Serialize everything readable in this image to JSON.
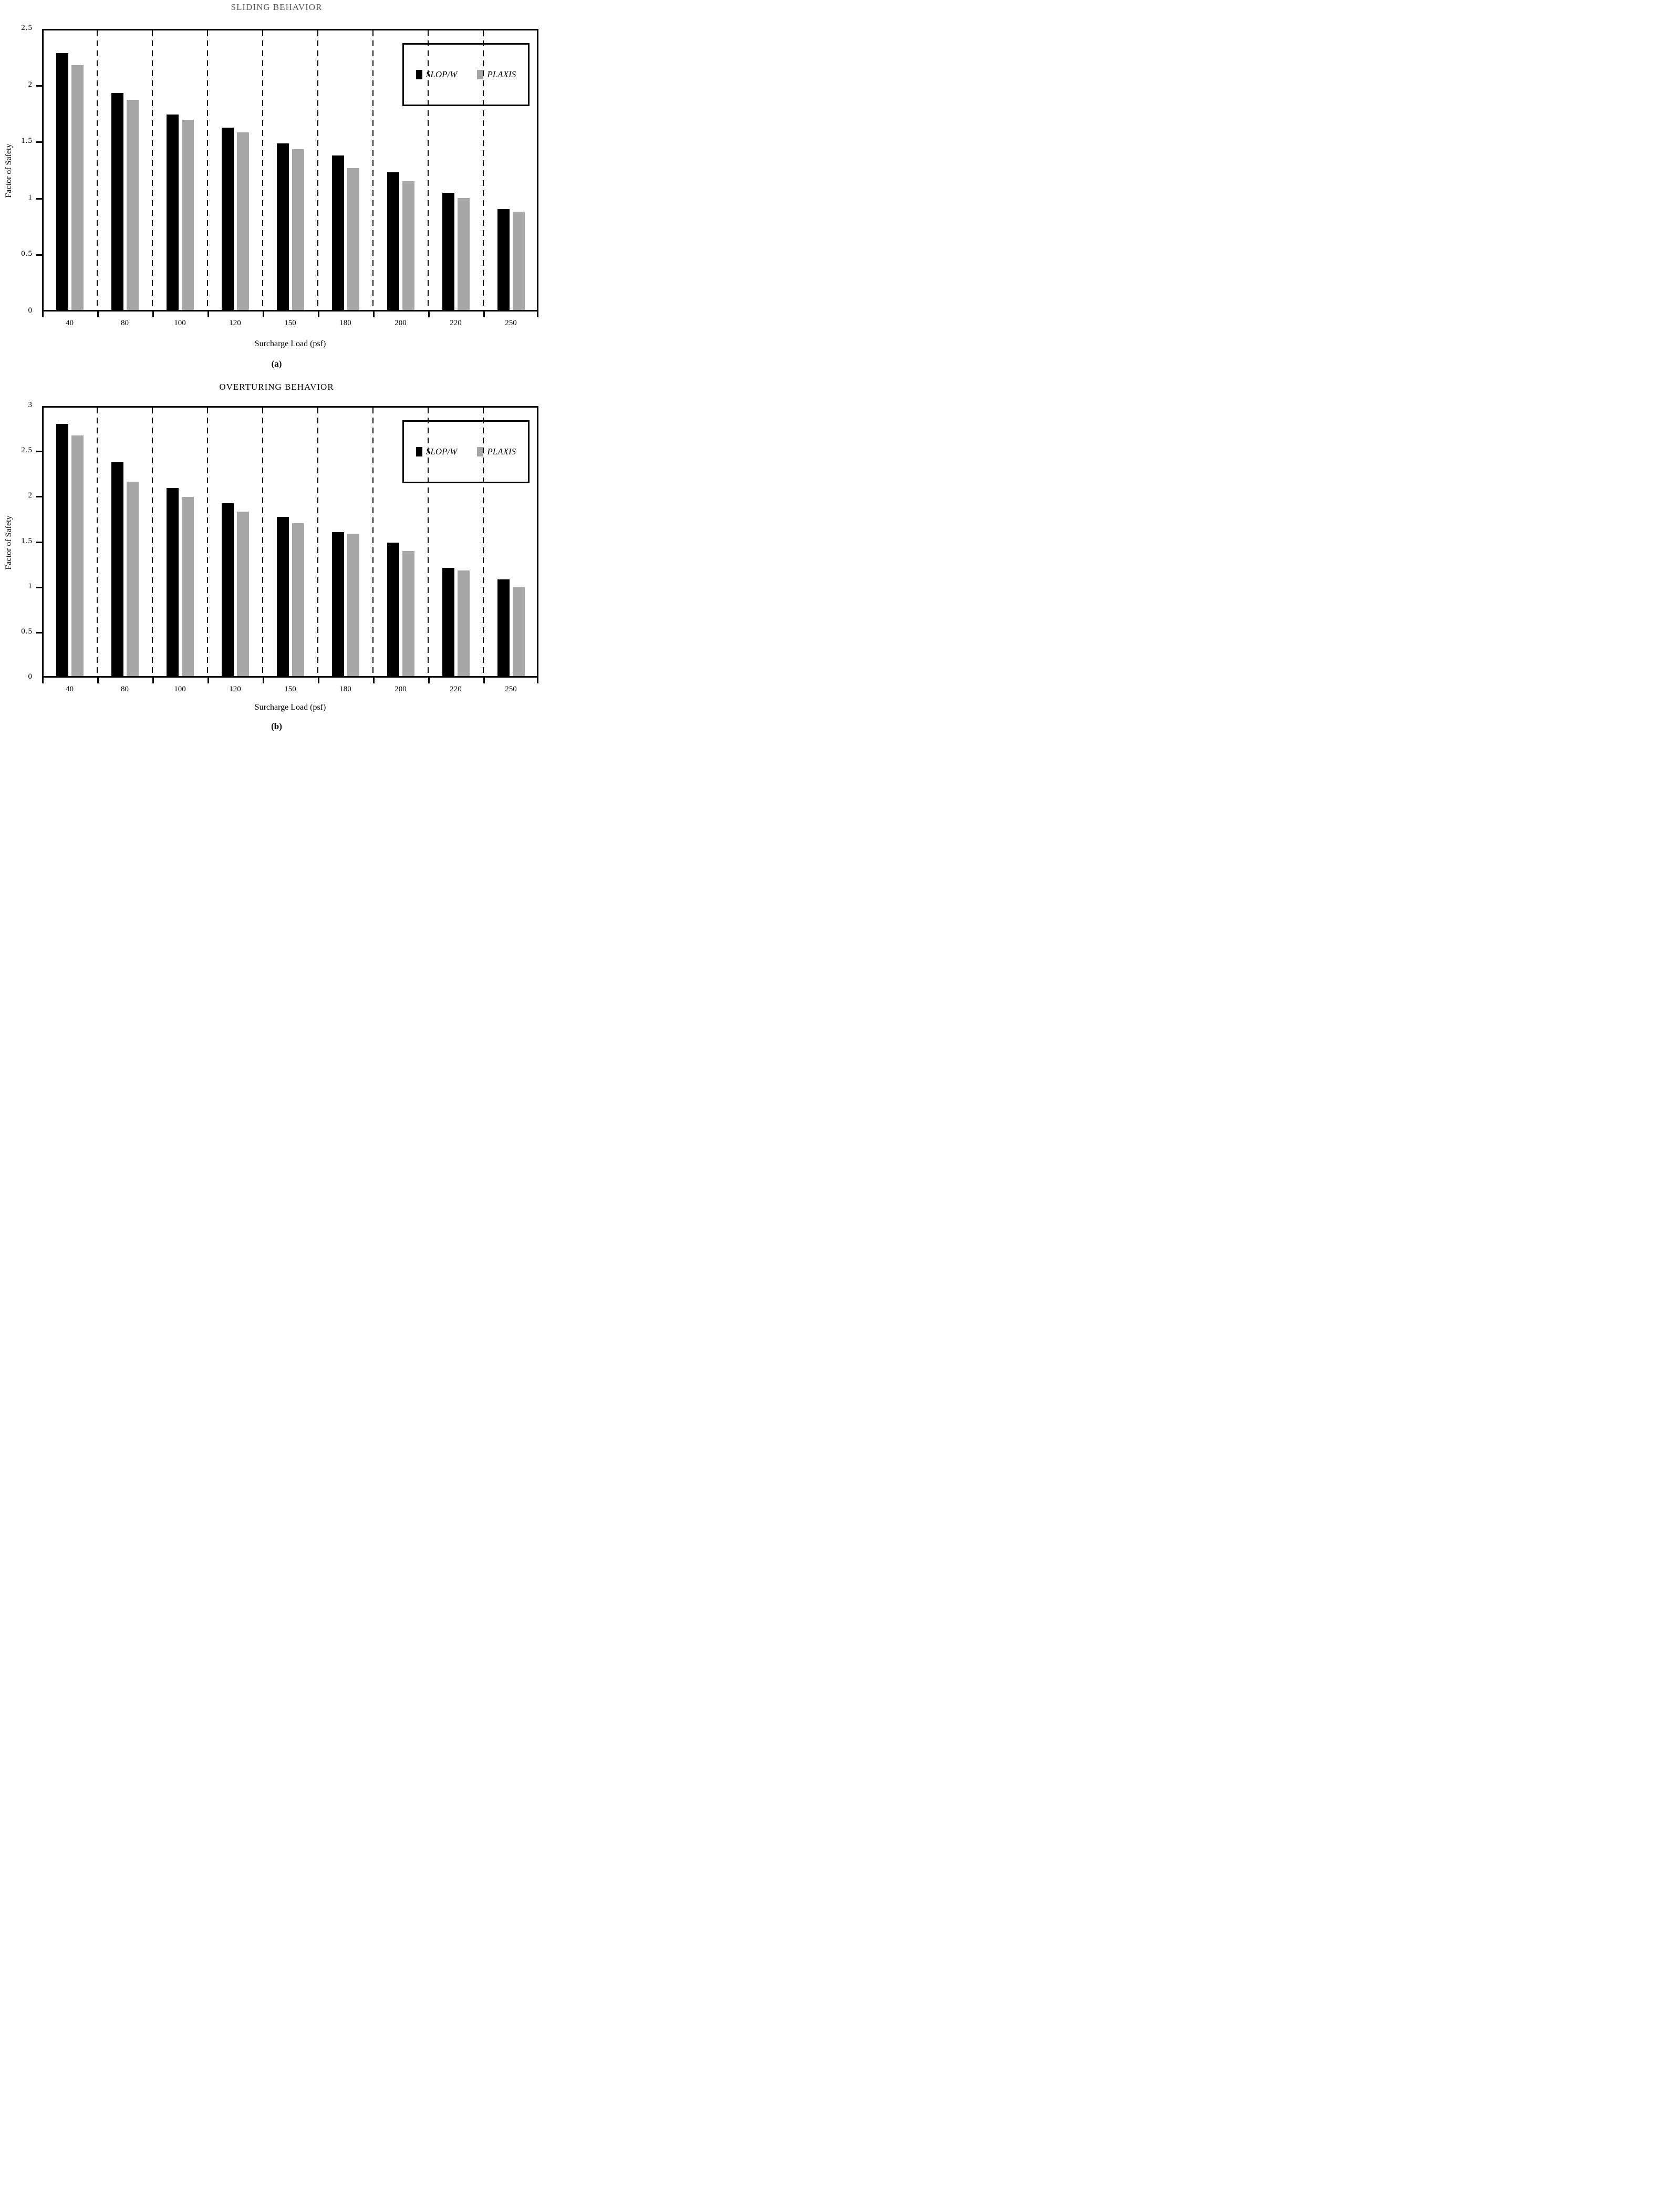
{
  "page": {
    "background": "#ffffff"
  },
  "chart_data": [
    {
      "type": "bar",
      "title": "SLIDING BEHAVIOR",
      "title_color": "#5a5a5a",
      "caption": "(a)",
      "xlabel": "Surcharge Load (psf)",
      "ylabel": "Factor of Safety",
      "ylim": [
        0,
        2.5
      ],
      "ytick_step": 0.5,
      "ytick_labels": [
        "0",
        "0.5",
        "1",
        "1.5",
        "2",
        "2.5"
      ],
      "categories": [
        "40",
        "80",
        "100",
        "120",
        "150",
        "180",
        "200",
        "220",
        "250"
      ],
      "series": [
        {
          "name": "SLOP/W",
          "color": "#000000",
          "values": [
            2.3,
            1.94,
            1.75,
            1.63,
            1.49,
            1.38,
            1.23,
            1.05,
            0.9
          ]
        },
        {
          "name": "PLAXIS",
          "color": "#a6a6a6",
          "values": [
            2.19,
            1.88,
            1.7,
            1.59,
            1.44,
            1.27,
            1.15,
            1.0,
            0.88
          ]
        }
      ],
      "legend_position": "top-right",
      "grid": "vertical-dashed-category-boundaries"
    },
    {
      "type": "bar",
      "title": "OVERTURING BEHAVIOR",
      "title_color": "#000000",
      "caption": "(b)",
      "xlabel": "Surcharge Load (psf)",
      "ylabel": "Factor of Safety",
      "ylim": [
        0,
        3
      ],
      "ytick_step": 0.5,
      "ytick_labels": [
        "0",
        "0.5",
        "1",
        "1.5",
        "2",
        "2.5",
        "3"
      ],
      "categories": [
        "40",
        "80",
        "100",
        "120",
        "150",
        "180",
        "200",
        "220",
        "250"
      ],
      "series": [
        {
          "name": "SLOP/W",
          "color": "#000000",
          "values": [
            2.82,
            2.39,
            2.1,
            1.93,
            1.78,
            1.61,
            1.49,
            1.21,
            1.08
          ]
        },
        {
          "name": "PLAXIS",
          "color": "#a6a6a6",
          "values": [
            2.69,
            2.17,
            2.0,
            1.84,
            1.71,
            1.59,
            1.4,
            1.18,
            0.99
          ]
        }
      ],
      "legend_position": "top-right",
      "grid": "vertical-dashed-category-boundaries"
    }
  ]
}
